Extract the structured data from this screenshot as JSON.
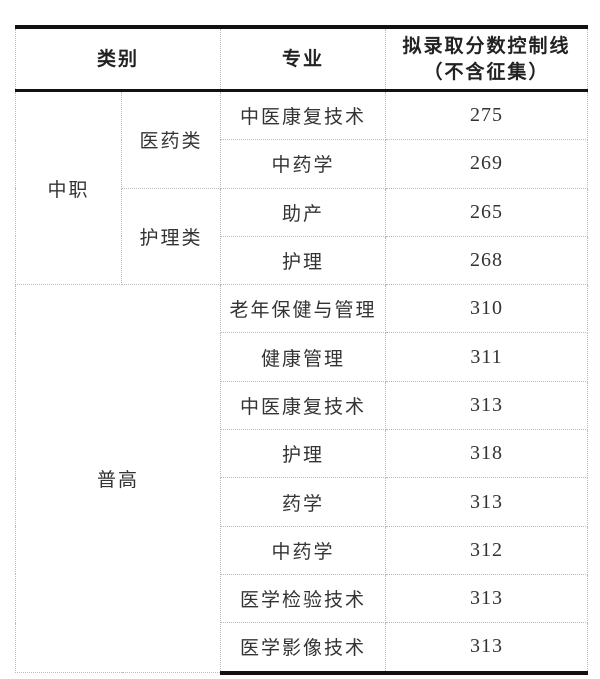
{
  "header": {
    "category": "类别",
    "major": "专业",
    "score_line1": "拟录取分数控制线",
    "score_line2": "（不含征集）"
  },
  "groups": {
    "zhongzhi": "中职",
    "yiyao": "医药类",
    "huli": "护理类",
    "putong": "普高"
  },
  "rows": [
    {
      "major": "中医康复技术",
      "score": "275"
    },
    {
      "major": "中药学",
      "score": "269"
    },
    {
      "major": "助产",
      "score": "265"
    },
    {
      "major": "护理",
      "score": "268"
    },
    {
      "major": "老年保健与管理",
      "score": "310"
    },
    {
      "major": "健康管理",
      "score": "311"
    },
    {
      "major": "中医康复技术",
      "score": "313"
    },
    {
      "major": "护理",
      "score": "318"
    },
    {
      "major": "药学",
      "score": "313"
    },
    {
      "major": "中药学",
      "score": "312"
    },
    {
      "major": "医学检验技术",
      "score": "313"
    },
    {
      "major": "医学影像技术",
      "score": "313"
    }
  ]
}
